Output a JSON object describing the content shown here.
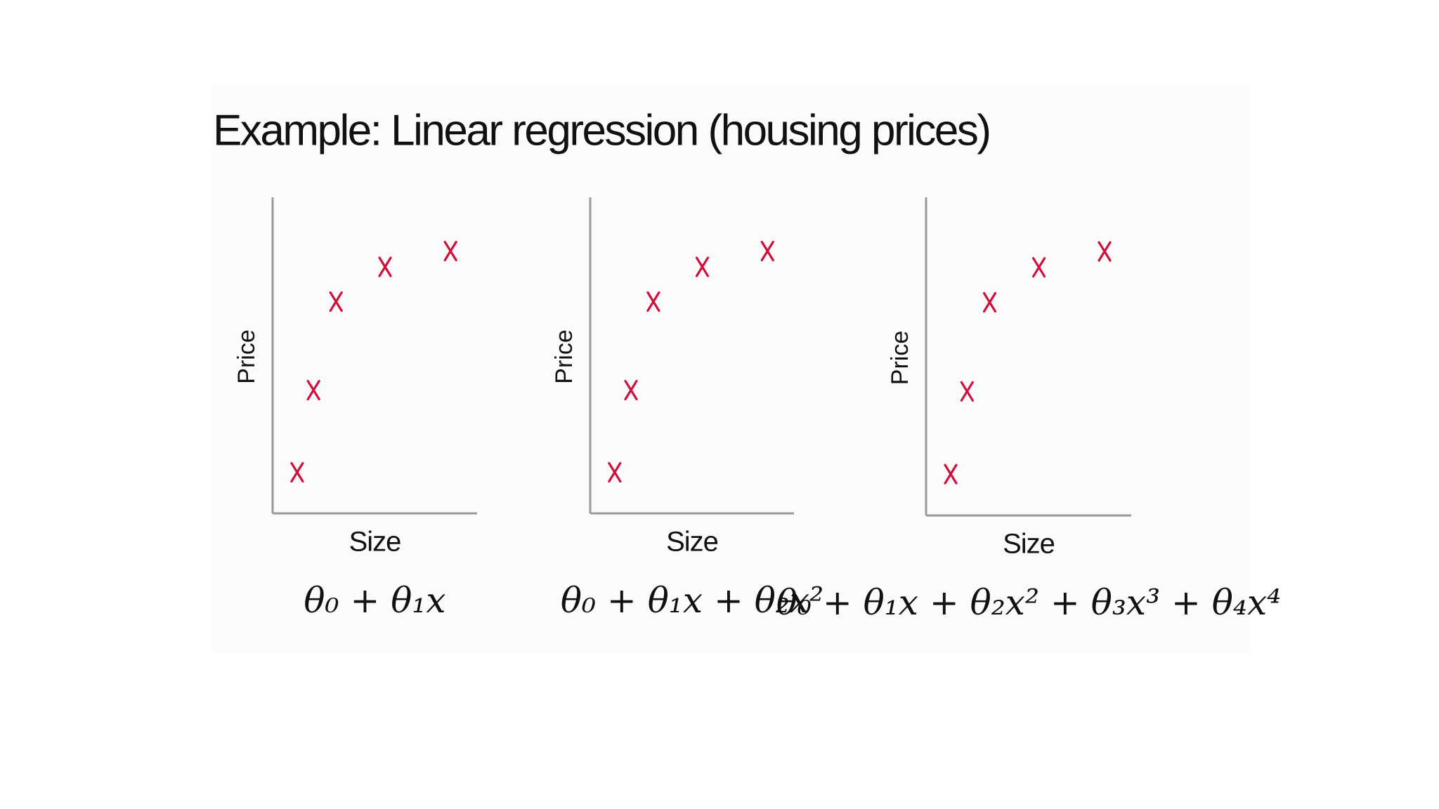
{
  "title": "Example: Linear regression (housing prices)",
  "chart_data": [
    {
      "type": "scatter",
      "x_label": "Size",
      "y_label": "Price",
      "formula": "θ₀ + θ₁x",
      "x": [
        12,
        20,
        31,
        55,
        87
      ],
      "values": [
        13,
        39,
        67,
        78,
        83
      ],
      "color": "#d0103a",
      "xlim": [
        0,
        100
      ],
      "ylim": [
        0,
        100
      ],
      "grid": false
    },
    {
      "type": "scatter",
      "x_label": "Size",
      "y_label": "Price",
      "formula": "θ₀ + θ₁x + θ₂x²",
      "x": [
        12,
        20,
        31,
        55,
        87
      ],
      "values": [
        13,
        39,
        67,
        78,
        83
      ],
      "color": "#d0103a",
      "xlim": [
        0,
        100
      ],
      "ylim": [
        0,
        100
      ],
      "grid": false
    },
    {
      "type": "scatter",
      "x_label": "Size",
      "y_label": "Price",
      "formula": "θ₀ + θ₁x + θ₂x² + θ₃x³ + θ₄x⁴",
      "x": [
        12,
        20,
        31,
        55,
        87
      ],
      "values": [
        13,
        39,
        67,
        78,
        83
      ],
      "color": "#d0103a",
      "xlim": [
        0,
        100
      ],
      "ylim": [
        0,
        100
      ],
      "grid": false
    }
  ]
}
